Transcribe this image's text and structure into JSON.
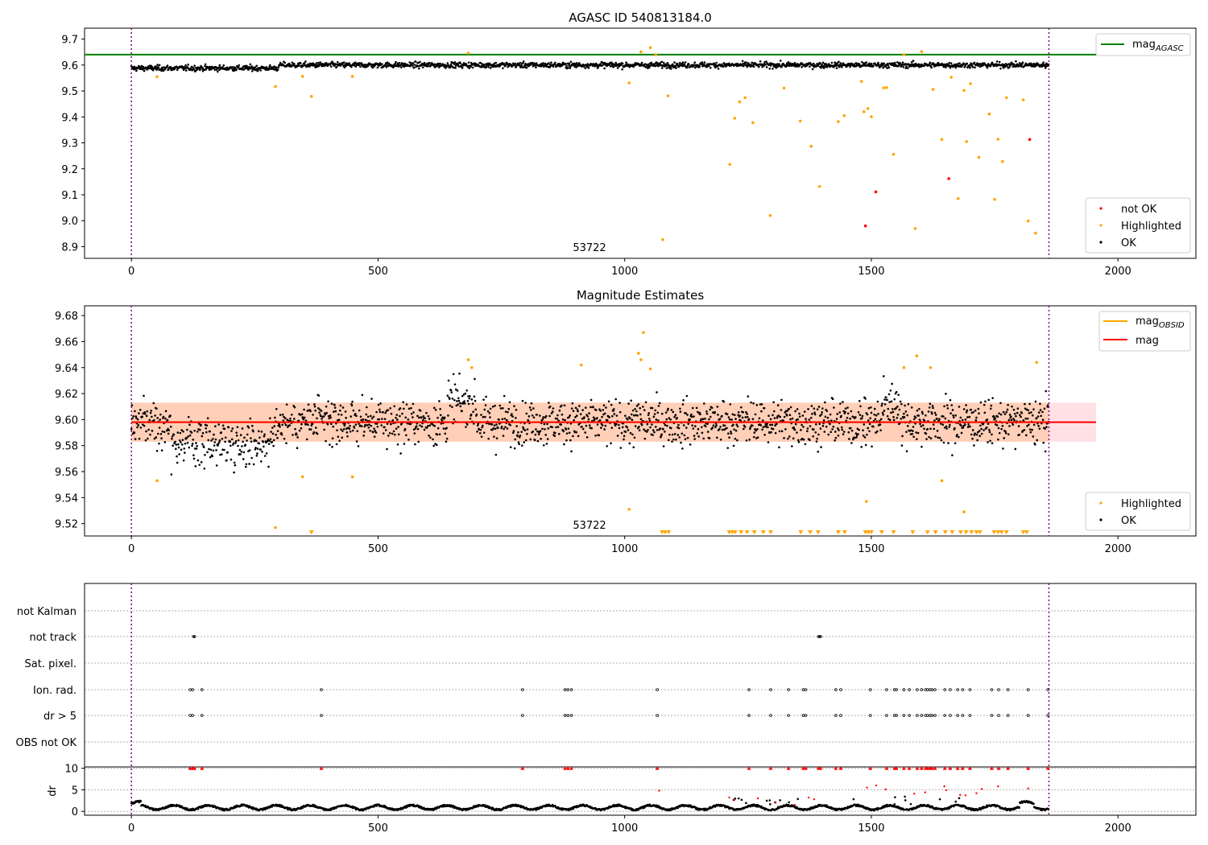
{
  "chart_data": [
    {
      "type": "scatter",
      "title": "AGASC ID 540813184.0",
      "annotation": "53722",
      "x_range": [
        -95,
        2158
      ],
      "y_range": [
        8.855,
        9.742
      ],
      "xticks": [
        "0",
        "500",
        "1000",
        "1500",
        "2000"
      ],
      "yticks": [
        "8.9",
        "9.0",
        "9.1",
        "9.2",
        "9.3",
        "9.4",
        "9.5",
        "9.6",
        "9.7"
      ],
      "vlines": [
        0,
        1860
      ],
      "mag_agasc": 9.64,
      "legend_top": {
        "line_label": "mag",
        "line_subscript": "AGASC",
        "color": "#008000"
      },
      "legend_bottom": [
        {
          "label": "not OK",
          "color": "#ff0000"
        },
        {
          "label": "Highlighted",
          "color": "#ffa500"
        },
        {
          "label": "OK",
          "color": "#000000"
        }
      ],
      "series": [
        {
          "name": "Highlighted",
          "color": "#ffa500",
          "x": [
            52,
            292,
            347,
            365,
            448,
            683,
            1009,
            1033,
            1052,
            1063,
            1077,
            1088,
            1213,
            1223,
            1233,
            1244,
            1260,
            1295,
            1323,
            1356,
            1378,
            1395,
            1433,
            1445,
            1480,
            1485,
            1493,
            1500,
            1525,
            1531,
            1545,
            1566,
            1589,
            1602,
            1625,
            1643,
            1662,
            1676,
            1688,
            1693,
            1701,
            1718,
            1739,
            1750,
            1757,
            1766,
            1774,
            1808,
            1818,
            1833
          ],
          "y": [
            9.555,
            9.517,
            9.556,
            9.479,
            9.556,
            9.646,
            9.531,
            9.651,
            9.667,
            9.64,
            8.927,
            9.481,
            9.217,
            9.395,
            9.458,
            9.474,
            9.378,
            9.02,
            9.511,
            9.384,
            9.287,
            9.132,
            9.382,
            9.405,
            9.537,
            9.42,
            9.432,
            9.401,
            9.512,
            9.513,
            9.256,
            9.64,
            8.97,
            9.652,
            9.506,
            9.313,
            9.553,
            9.085,
            9.502,
            9.305,
            9.528,
            9.244,
            9.411,
            9.082,
            9.314,
            9.228,
            9.474,
            9.466,
            8.999,
            8.952
          ]
        },
        {
          "name": "not OK",
          "color": "#ff0000",
          "x": [
            1488,
            1509,
            1657,
            1821
          ],
          "y": [
            8.98,
            9.111,
            9.162,
            9.313
          ]
        }
      ]
    },
    {
      "type": "scatter",
      "title": "Magnitude Estimates",
      "annotation": "53722",
      "x_range": [
        -95,
        2158
      ],
      "y_range": [
        9.5105,
        9.6875
      ],
      "xticks": [
        "0",
        "500",
        "1000",
        "1500",
        "2000"
      ],
      "yticks": [
        "9.52",
        "9.54",
        "9.56",
        "9.58",
        "9.60",
        "9.62",
        "9.64",
        "9.66",
        "9.68"
      ],
      "vlines": [
        0,
        1860
      ],
      "mag": 9.598,
      "mag_band": [
        9.583,
        9.613
      ],
      "mag_obsid": 9.598,
      "legend_top": [
        {
          "label": "mag",
          "subscript": "OBSID",
          "color": "#ffa500"
        },
        {
          "label": "mag",
          "color": "#ff0000"
        }
      ],
      "legend_bottom": [
        {
          "label": "Highlighted",
          "color": "#ffa500"
        },
        {
          "label": "OK",
          "color": "#000000"
        }
      ],
      "series": [
        {
          "name": "Highlighted",
          "color": "#ffa500",
          "x": [
            52,
            292,
            347,
            448,
            683,
            690,
            912,
            1009,
            1028,
            1033,
            1038,
            1052,
            1490,
            1566,
            1592,
            1620,
            1643,
            1688,
            1835
          ],
          "y": [
            9.553,
            9.517,
            9.556,
            9.556,
            9.646,
            9.64,
            9.642,
            9.531,
            9.651,
            9.646,
            9.667,
            9.639,
            9.537,
            9.64,
            9.649,
            9.64,
            9.553,
            9.529,
            9.644
          ]
        },
        {
          "name": "Highlighted (below range)",
          "marker": "triangle-down",
          "color": "#ffa500",
          "x": [
            365,
            1076,
            1082,
            1089,
            1212,
            1218,
            1224,
            1236,
            1248,
            1263,
            1281,
            1296,
            1357,
            1376,
            1392,
            1433,
            1446,
            1488,
            1494,
            1500,
            1521,
            1545,
            1584,
            1614,
            1630,
            1650,
            1664,
            1681,
            1692,
            1703,
            1713,
            1720,
            1749,
            1757,
            1764,
            1774,
            1808,
            1815
          ]
        }
      ]
    },
    {
      "type": "scatter",
      "x_range": [
        -95,
        2158
      ],
      "xticks": [
        "0",
        "500",
        "1000",
        "1500",
        "2000"
      ],
      "vlines": [
        0,
        1860
      ],
      "flag_labels": [
        "not Kalman",
        "not track",
        "Sat. pixel.",
        "Ion. rad.",
        "dr > 5",
        "OBS not OK"
      ],
      "flags": {
        "not track": [
          126,
          128,
          1393,
          1395,
          1397
        ],
        "Ion. rad.": [
          119,
          124,
          143,
          385,
          793,
          879,
          885,
          892,
          1066,
          1252,
          1296,
          1332,
          1362,
          1367,
          1428,
          1438,
          1498,
          1531,
          1547,
          1551,
          1566,
          1577,
          1593,
          1602,
          1610,
          1614,
          1619,
          1623,
          1629,
          1649,
          1660,
          1675,
          1685,
          1700,
          1744,
          1758,
          1777,
          1818,
          1858
        ],
        "dr > 5": [
          119,
          124,
          143,
          385,
          793,
          879,
          885,
          892,
          1066,
          1252,
          1296,
          1332,
          1362,
          1367,
          1428,
          1438,
          1498,
          1531,
          1547,
          1551,
          1566,
          1577,
          1593,
          1602,
          1610,
          1614,
          1619,
          1623,
          1629,
          1649,
          1660,
          1675,
          1685,
          1700,
          1744,
          1758,
          1777,
          1818,
          1858
        ]
      },
      "dr": {
        "ylabel": "dr",
        "y_range": [
          -0.9,
          10.3
        ],
        "yticks": [
          "0",
          "5",
          "10"
        ],
        "capped_x": [
          119,
          124,
          128,
          143,
          385,
          793,
          879,
          885,
          892,
          1066,
          1252,
          1296,
          1332,
          1362,
          1367,
          1393,
          1397,
          1428,
          1438,
          1498,
          1531,
          1547,
          1551,
          1566,
          1577,
          1593,
          1602,
          1610,
          1614,
          1619,
          1623,
          1629,
          1649,
          1660,
          1675,
          1685,
          1700,
          1744,
          1758,
          1777,
          1818,
          1858
        ],
        "scattered_x": [
          1070,
          1212,
          1222,
          1270,
          1306,
          1345,
          1373,
          1384,
          1491,
          1510,
          1529,
          1587,
          1609,
          1648,
          1652,
          1680,
          1691,
          1713,
          1724,
          1757,
          1818
        ],
        "scattered_y": [
          4.8,
          3.2,
          2.6,
          3.0,
          2.0,
          1.5,
          3.2,
          2.8,
          5.5,
          6.0,
          5.1,
          4.1,
          4.4,
          5.8,
          4.9,
          3.8,
          3.7,
          4.2,
          5.2,
          5.8,
          5.3
        ]
      }
    }
  ]
}
